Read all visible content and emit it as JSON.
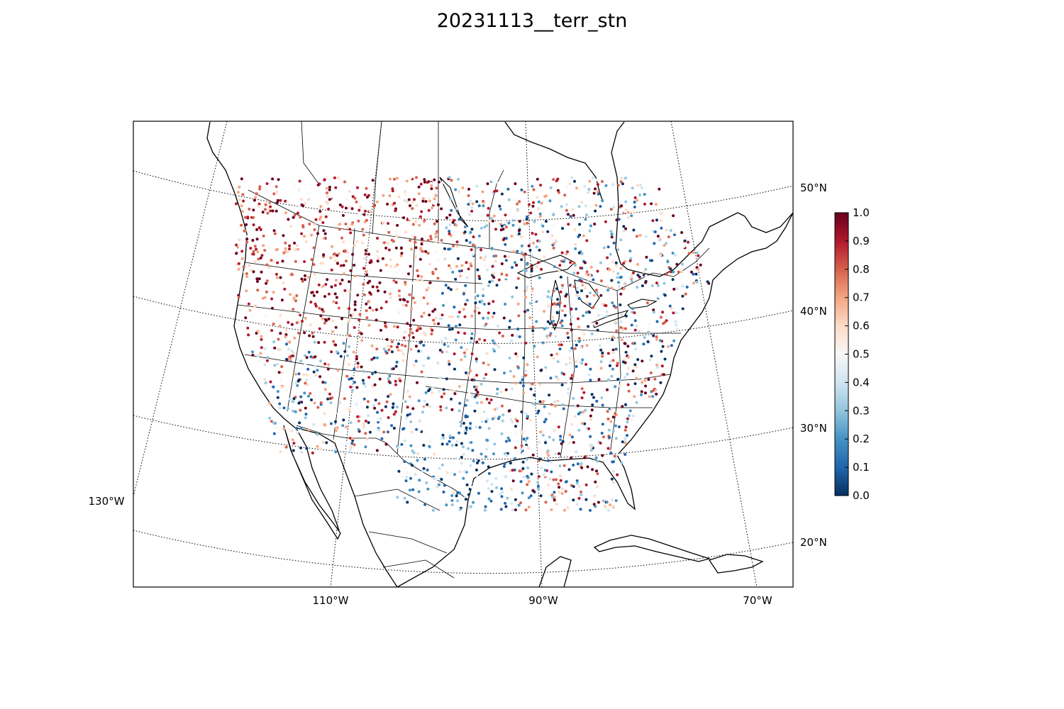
{
  "title": "20231113__terr_stn",
  "map": {
    "projection": "lambert-conformal",
    "longitude_labels": [
      "130°W",
      "110°W",
      "90°W",
      "70°W"
    ],
    "latitude_labels": [
      "20°N",
      "30°N",
      "40°N",
      "50°N"
    ],
    "gridline_style": "dotted",
    "markers": "colored station dots"
  },
  "colorbar": {
    "cmap": "RdBu_r",
    "ticks": [
      "0.0",
      "0.1",
      "0.2",
      "0.3",
      "0.4",
      "0.5",
      "0.6",
      "0.7",
      "0.8",
      "0.9",
      "1.0"
    ],
    "colors": [
      "#053061",
      "#2166ac",
      "#4393c3",
      "#92c5de",
      "#d1e5f0",
      "#f7f7f7",
      "#fddbc7",
      "#f4a582",
      "#d6604d",
      "#b2182b",
      "#67001f"
    ]
  }
}
